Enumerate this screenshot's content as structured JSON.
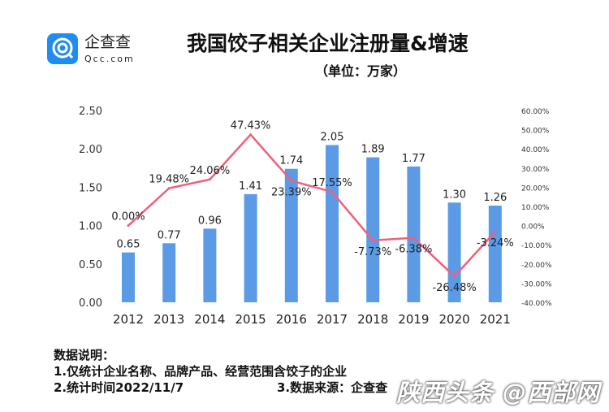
{
  "logo": {
    "cn": "企查查",
    "en": "Qcc.com"
  },
  "title": "我国饺子相关企业注册量&增速",
  "subtitle": "（单位：万家）",
  "chart_data": {
    "type": "bar+line",
    "categories": [
      "2012",
      "2013",
      "2014",
      "2015",
      "2016",
      "2017",
      "2018",
      "2019",
      "2020",
      "2021"
    ],
    "series": [
      {
        "type": "bar",
        "axis": "left",
        "color": "#5b9be6",
        "values": [
          0.65,
          0.77,
          0.96,
          1.41,
          1.74,
          2.05,
          1.89,
          1.77,
          1.3,
          1.26
        ],
        "labels": [
          "0.65",
          "0.77",
          "0.96",
          "1.41",
          "1.74",
          "2.05",
          "1.89",
          "1.77",
          "1.30",
          "1.26"
        ]
      },
      {
        "type": "line",
        "axis": "right",
        "color": "#f0607a",
        "values": [
          0.0,
          19.48,
          24.06,
          47.43,
          23.39,
          17.55,
          -7.73,
          -6.38,
          -26.48,
          -3.24
        ],
        "labels": [
          "0.00%",
          "19.48%",
          "24.06%",
          "47.43%",
          "23.39%",
          "17.55%",
          "-7.73%",
          "-6.38%",
          "-26.48%",
          "-3.24%"
        ]
      }
    ],
    "left_ylim": [
      0,
      2.5
    ],
    "left_ticks": [
      "0.00",
      "0.50",
      "1.00",
      "1.50",
      "2.00",
      "2.50"
    ],
    "right_ylim": [
      -40,
      60
    ],
    "right_ticks": [
      "-40.00%",
      "-30.00%",
      "-20.00%",
      "-10.00%",
      "0.00%",
      "10.00%",
      "20.00%",
      "30.00%",
      "40.00%",
      "50.00%",
      "60.00%"
    ],
    "grid": false
  },
  "notes": {
    "heading": "数据说明：",
    "line1": "1.仅统计企业名称、品牌产品、经营范围含饺子的企业",
    "line2": "2.统计时间2022/11/7",
    "line3": "3.数据来源：企查查"
  },
  "watermark": "陕西头条 @西部网"
}
